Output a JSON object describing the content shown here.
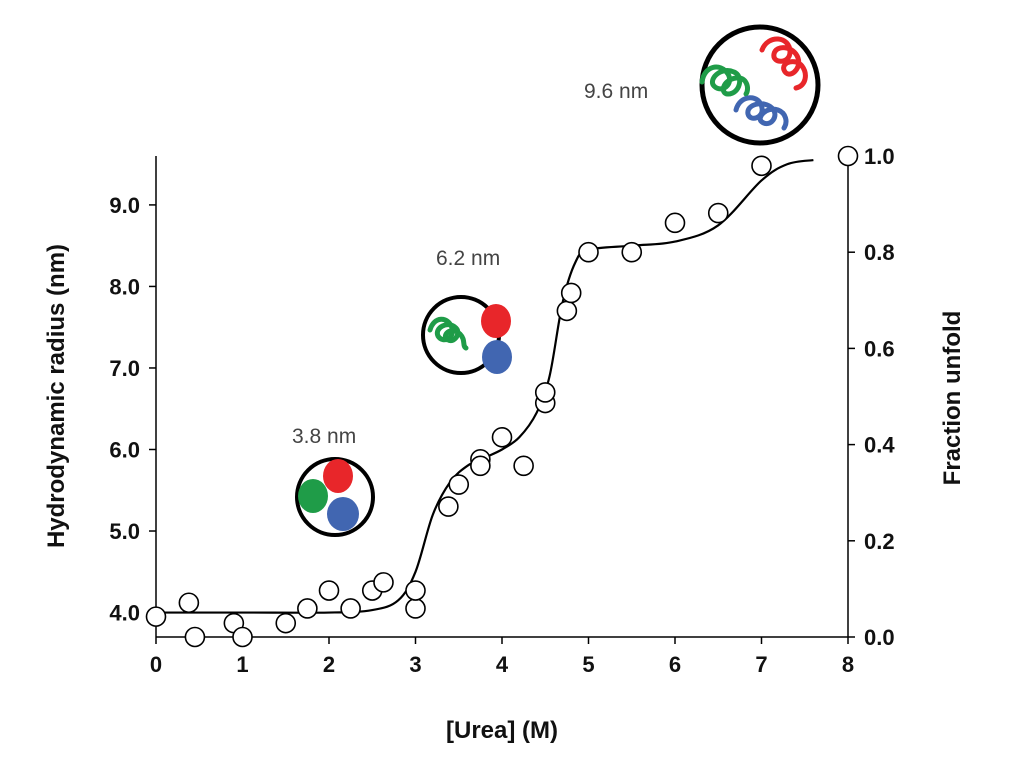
{
  "chart_data": {
    "type": "scatter",
    "title": "",
    "xlabel": "[Urea] (M)",
    "ylabel": "Hydrodynamic  radius (nm)",
    "y2label": "Fraction unfold",
    "xlim": [
      0,
      8
    ],
    "ylim": [
      3.7,
      9.6
    ],
    "y2lim": [
      0,
      1
    ],
    "grid": false,
    "x_ticks": [
      "0",
      "1",
      "2",
      "3",
      "4",
      "5",
      "6",
      "7",
      "8"
    ],
    "y_ticks": [
      "4.0",
      "5.0",
      "6.0",
      "7.0",
      "8.0",
      "9.0"
    ],
    "y2_ticks": [
      "0.0",
      "0.2",
      "0.4",
      "0.6",
      "0.8",
      "1.0"
    ],
    "points": [
      {
        "x": 0.0,
        "y": 3.95
      },
      {
        "x": 0.38,
        "y": 4.12
      },
      {
        "x": 0.45,
        "y": 3.7
      },
      {
        "x": 0.9,
        "y": 3.87
      },
      {
        "x": 1.0,
        "y": 3.7
      },
      {
        "x": 1.5,
        "y": 3.87
      },
      {
        "x": 1.75,
        "y": 4.05
      },
      {
        "x": 2.0,
        "y": 4.27
      },
      {
        "x": 2.25,
        "y": 4.05
      },
      {
        "x": 2.5,
        "y": 4.27
      },
      {
        "x": 2.63,
        "y": 4.37
      },
      {
        "x": 3.0,
        "y": 4.05
      },
      {
        "x": 3.0,
        "y": 4.27
      },
      {
        "x": 3.38,
        "y": 5.3
      },
      {
        "x": 3.5,
        "y": 5.57
      },
      {
        "x": 3.75,
        "y": 5.88
      },
      {
        "x": 3.75,
        "y": 5.8
      },
      {
        "x": 4.0,
        "y": 6.15
      },
      {
        "x": 4.25,
        "y": 5.8
      },
      {
        "x": 4.5,
        "y": 6.57
      },
      {
        "x": 4.5,
        "y": 6.7
      },
      {
        "x": 4.75,
        "y": 7.7
      },
      {
        "x": 4.8,
        "y": 7.92
      },
      {
        "x": 5.0,
        "y": 8.42
      },
      {
        "x": 5.5,
        "y": 8.42
      },
      {
        "x": 6.0,
        "y": 8.78
      },
      {
        "x": 6.5,
        "y": 8.9
      },
      {
        "x": 7.0,
        "y": 9.48
      },
      {
        "x": 8.0,
        "y": 9.6
      }
    ],
    "fit_curve": [
      [
        0,
        4.0
      ],
      [
        1,
        4.0
      ],
      [
        2,
        4.0
      ],
      [
        2.5,
        4.03
      ],
      [
        2.8,
        4.15
      ],
      [
        3.0,
        4.5
      ],
      [
        3.2,
        5.2
      ],
      [
        3.4,
        5.6
      ],
      [
        3.6,
        5.8
      ],
      [
        3.8,
        5.9
      ],
      [
        4.0,
        6.0
      ],
      [
        4.2,
        6.15
      ],
      [
        4.4,
        6.45
      ],
      [
        4.55,
        6.9
      ],
      [
        4.7,
        7.8
      ],
      [
        4.85,
        8.3
      ],
      [
        5.0,
        8.45
      ],
      [
        5.5,
        8.5
      ],
      [
        6.0,
        8.55
      ],
      [
        6.5,
        8.75
      ],
      [
        7.0,
        9.3
      ],
      [
        7.3,
        9.5
      ],
      [
        7.6,
        9.55
      ]
    ],
    "annotations": [
      {
        "text": "3.8 nm",
        "state": "compact"
      },
      {
        "text": "6.2 nm",
        "state": "partially-unfolded"
      },
      {
        "text": "9.6 nm",
        "state": "unfolded"
      }
    ],
    "colors": {
      "red": "#e8262a",
      "green": "#1f9c48",
      "blue": "#4166b1"
    }
  }
}
